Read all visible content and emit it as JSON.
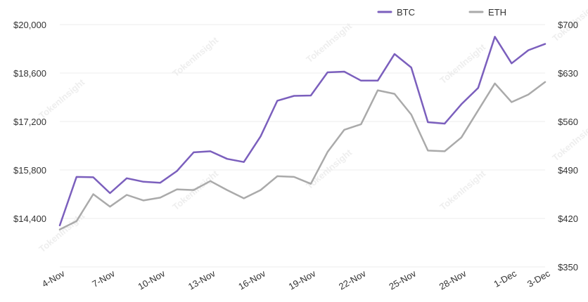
{
  "chart_data": {
    "type": "line",
    "watermark": "TokenInsight",
    "categories": [
      "4-Nov",
      "5-Nov",
      "6-Nov",
      "7-Nov",
      "8-Nov",
      "9-Nov",
      "10-Nov",
      "11-Nov",
      "12-Nov",
      "13-Nov",
      "14-Nov",
      "15-Nov",
      "16-Nov",
      "17-Nov",
      "18-Nov",
      "19-Nov",
      "20-Nov",
      "21-Nov",
      "22-Nov",
      "23-Nov",
      "24-Nov",
      "25-Nov",
      "26-Nov",
      "27-Nov",
      "28-Nov",
      "29-Nov",
      "30-Nov",
      "1-Dec",
      "2-Dec",
      "3-Dec"
    ],
    "x_tick_labels": [
      "4-Nov",
      "7-Nov",
      "10-Nov",
      "13-Nov",
      "16-Nov",
      "19-Nov",
      "22-Nov",
      "25-Nov",
      "28-Nov",
      "1-Dec",
      "3-Dec"
    ],
    "y_left": {
      "ticks": [
        "$20,000",
        "$18,600",
        "$17,200",
        "$15,800",
        "$14,400"
      ],
      "min": 13000,
      "max": 20000
    },
    "y_right": {
      "ticks": [
        "$700",
        "$630",
        "$560",
        "$490",
        "$420",
        "$350"
      ],
      "min": 350,
      "max": 700
    },
    "series": [
      {
        "name": "BTC",
        "axis": "left",
        "color": "#7b5fbd",
        "values": [
          14200,
          15600,
          15590,
          15130,
          15560,
          15460,
          15430,
          15770,
          16310,
          16340,
          16120,
          16030,
          16770,
          17800,
          17940,
          17950,
          18620,
          18640,
          18380,
          18380,
          19150,
          18760,
          17180,
          17140,
          17700,
          18170,
          19650,
          18880,
          19260,
          19440
        ]
      },
      {
        "name": "ETH",
        "axis": "right",
        "color": "#aaaaaa",
        "values": [
          404,
          416,
          455,
          437,
          454,
          446,
          450,
          462,
          461,
          474,
          461,
          449,
          461,
          481,
          480,
          470,
          516,
          548,
          556,
          605,
          600,
          570,
          518,
          517,
          537,
          576,
          615,
          588,
          599,
          617
        ]
      }
    ],
    "legend": {
      "position": "top-right"
    },
    "grid": true
  }
}
